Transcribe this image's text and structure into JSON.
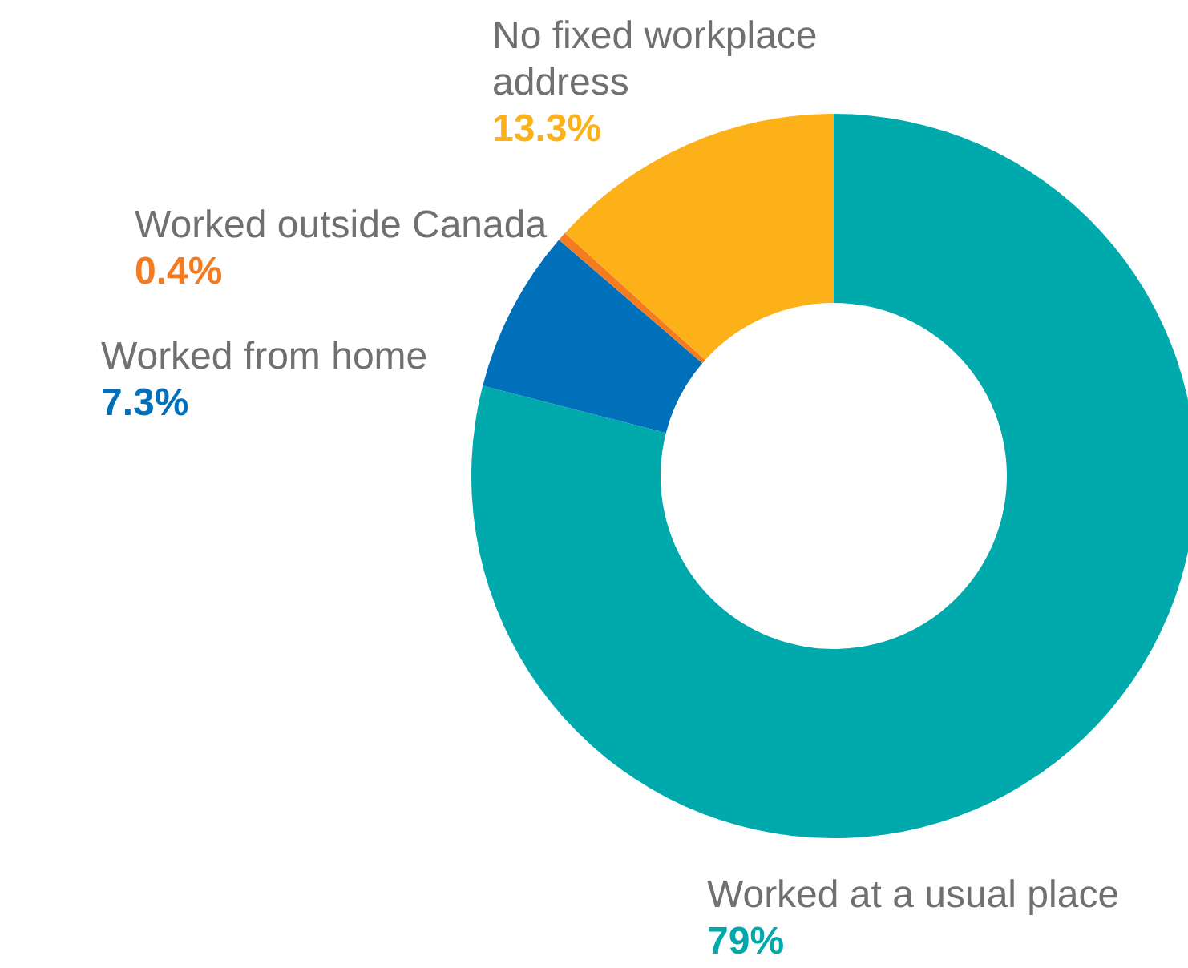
{
  "chart_data": {
    "type": "donut",
    "categories": [
      "Worked at a usual place",
      "Worked from home",
      "Worked outside Canada",
      "No fixed workplace address"
    ],
    "values": [
      79,
      7.3,
      0.4,
      13.3
    ],
    "colors": [
      "#00a9ac",
      "#0070bb",
      "#f47b20",
      "#fdb119"
    ],
    "value_labels": [
      "79%",
      "7.3%",
      "0.4%",
      "13.3%"
    ]
  }
}
